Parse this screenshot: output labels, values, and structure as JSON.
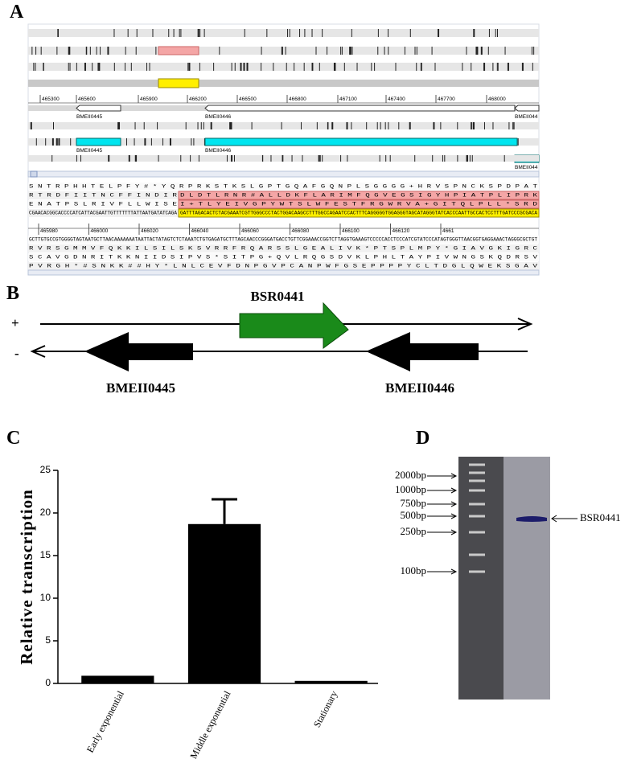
{
  "panel_a": {
    "label": "A",
    "ruler_ticks": [
      "465300",
      "465600",
      "465900",
      "466200",
      "466500",
      "466800",
      "467100",
      "467400",
      "467700",
      "468000"
    ],
    "gene_labels_top": [
      "BMEII0445",
      "BMEII0446",
      "BMEII044"
    ],
    "gene_labels_bottom": [
      "BMEII0445",
      "BMEII0446",
      "BMEII044"
    ],
    "sequence_ruler": [
      "465980",
      "466000",
      "466020",
      "466040",
      "466060",
      "466080",
      "466100",
      "466120",
      "4661"
    ],
    "sequence_rows": [
      [
        "S N T R P H H T E L P F Y # * Y Q R P R K S T K S L G P T G Q A F G Q N P L S G G G G + H R V S P N C K S P D P A T"
      ],
      [
        "R T R D F I I T N C F F I N D I R",
        "D L D T L R N R # A L L D K F L A R I M F Q G V E G S I G Y H P I A T P L I P R K"
      ],
      [
        "E N A T P S L R I V F L L W I S E",
        "I + T L Y E I V G P Y W T S L W F E S T F R G W R V A + G I T Q L P L L * S R D"
      ],
      [
        "CGAACACGGCACCCCATCATTACGAATTGTTTTTTTATTAATGATATCAGA",
        "GATTTAGACACTCTACGAAATCGTTGGGCCCTACTGGACAAGCCTTTGGCCAGAATCCACTTTCAGGGGGTGGAGGGTAGCATAGGGTATCACCCAATTGCCACTCCTTTGATCCCGCGACA"
      ],
      [
        "GCTTGTGCCGTGGGGTAGTAATGCTTAACAAAAAAATAATTACTATAGTCTCTAAATCTGTGAGATGCTTTAGCAACCCGGGATGACCTGTTCGGAAACCGGTCTTAGGTGAAAGTCCCCCACCTCCCATCGTATCCCATAGTGGGTTAACGGTGAGGAAACTAGGGCGCTGT"
      ],
      [
        "R V R S G M M V F Q K K I L S I L S K S V R R F R Q A R S S L G E A L I V K * P T S P L M P Y * G I A V G K I G R C"
      ],
      [
        "S C A V G D N R I T K K N I I D S I P V S * S I T P G + Q V L R Q G S D V K L P H L T A Y P I V W N G S K Q D R S V"
      ],
      [
        "P V R G H * # S N K K # # H Y * L N L C E V F D N P G V P C A N P W F G S E P P P P Y C L T D G L Q W E K S G A V"
      ]
    ]
  },
  "panel_b": {
    "label": "B",
    "plus": "+",
    "minus": "-",
    "genes": [
      "BSR0441",
      "BMEII0445",
      "BMEII0446"
    ]
  },
  "chart_data": {
    "type": "bar",
    "panel_label": "C",
    "ylabel": "Relative transcription",
    "categories": [
      "Early exponential",
      "Middle exponential",
      "Stationary"
    ],
    "values": [
      0.9,
      18.7,
      0.3
    ],
    "errors": [
      null,
      2.9,
      null
    ],
    "color": "#000000",
    "ylim": [
      0,
      25
    ],
    "yticks": [
      0,
      5,
      10,
      15,
      20,
      25
    ]
  },
  "panel_d": {
    "label": "D",
    "markers": [
      "2000bp",
      "1000bp",
      "750bp",
      "500bp",
      "250bp",
      "100bp"
    ],
    "band_label": "BSR0441"
  }
}
